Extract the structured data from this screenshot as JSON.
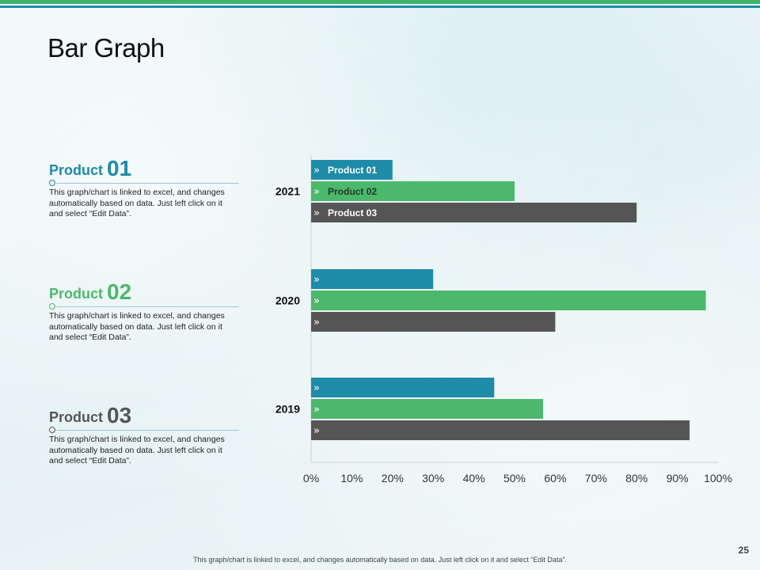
{
  "page": {
    "title": "Bar Graph",
    "page_number": "25",
    "footer_note": "This graph/chart is linked to excel, and changes automatically based on data. Just left click on it and select “Edit Data”."
  },
  "products": [
    {
      "label": "Product",
      "number": "01",
      "color": "#1e8ba8",
      "description": "This graph/chart is linked to excel, and changes automatically based on data. Just left click on it and select “Edit Data”."
    },
    {
      "label": "Product",
      "number": "02",
      "color": "#4cb86c",
      "description": "This graph/chart is linked to excel, and changes automatically based on data. Just left click on it and select “Edit Data”."
    },
    {
      "label": "Product",
      "number": "03",
      "color": "#555555",
      "description": "This graph/chart is linked to excel, and changes automatically based on data. Just left click on it and select “Edit Data”."
    }
  ],
  "chart_data": {
    "type": "bar",
    "orientation": "horizontal",
    "categories": [
      "2021",
      "2020",
      "2019"
    ],
    "series": [
      {
        "name": "Product 01",
        "color": "#1e8ba8",
        "values": [
          20,
          30,
          45
        ]
      },
      {
        "name": "Product 02",
        "color": "#4cb86c",
        "values": [
          50,
          97,
          57
        ]
      },
      {
        "name": "Product 03",
        "color": "#555555",
        "values": [
          80,
          60,
          93
        ]
      }
    ],
    "bar_marker": "»",
    "xlim": [
      0,
      100
    ],
    "x_ticks": [
      "0%",
      "10%",
      "20%",
      "30%",
      "40%",
      "50%",
      "60%",
      "70%",
      "80%",
      "90%",
      "100%"
    ],
    "legend": "in-bar labels on top category",
    "grid": false
  },
  "colors": {
    "accent_green": "#3fb36b",
    "accent_teal": "#1e8ba8",
    "dark_gray": "#555555"
  }
}
